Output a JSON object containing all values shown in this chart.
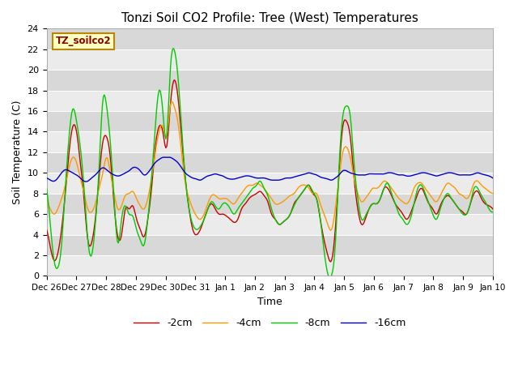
{
  "title": "Tonzi Soil CO2 Profile: Tree (West) Temperatures",
  "xlabel": "Time",
  "ylabel": "Soil Temperature (C)",
  "ylim": [
    0,
    24
  ],
  "yticks": [
    0,
    2,
    4,
    6,
    8,
    10,
    12,
    14,
    16,
    18,
    20,
    22,
    24
  ],
  "bg_color_light": "#ebebeb",
  "bg_color_dark": "#d8d8d8",
  "legend_label": "TZ_soilco2",
  "legend_box_color": "#ffffc0",
  "legend_box_edge": "#b8860b",
  "col_2cm": "#cc0000",
  "col_4cm": "#ff9900",
  "col_8cm": "#00cc00",
  "col_16cm": "#0000cc",
  "lw": 1.0,
  "tick_labels": [
    "Dec 26",
    "Dec 27",
    "Dec 28",
    "Dec 29",
    "Dec 30",
    "Dec 31",
    "Jan 1",
    "Jan 2",
    "Jan 3",
    "Jan 4",
    "Jan 5",
    "Jan 6",
    "Jan 7",
    "Jan 8",
    "Jan 9",
    "Jan 10"
  ],
  "figsize": [
    6.4,
    4.8
  ],
  "dpi": 100
}
